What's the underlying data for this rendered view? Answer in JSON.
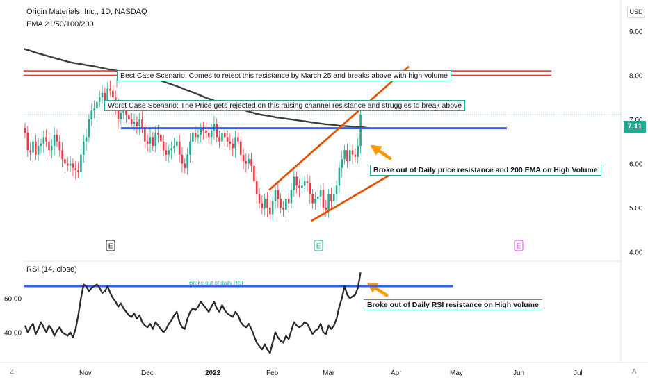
{
  "header": {
    "symbol_line": "Origin Materials, Inc., 1D, NASDAQ",
    "indicator_line": "EMA 21/50/100/200"
  },
  "currency_button": "USD",
  "last_price_tag": "7.11",
  "rsi_label": "RSI (14, close)",
  "corner_left": "Z",
  "corner_right": "A",
  "earnings_marker": "E",
  "annotations": {
    "best_case": "Best Case Scenario: Comes to retest this resistance by March 25 and breaks above with high volume",
    "worst_case": "Worst Case Scenario: The Price gets rejected on this raising channel resistance and struggles to break above",
    "breakout_price": "Broke out of Daily price resistance and 200 EMA on High Volume",
    "breakout_rsi": "Broke out of Daily RSI resistance on High volume",
    "rsi_line_label": "Broke out of daily RSI"
  },
  "colors": {
    "up": "#22ab94",
    "down": "#f23645",
    "ema200": "#3d3d3d",
    "resistance_blue": "#2962ff",
    "channel_orange": "#e65100",
    "horizontal_red": "#e53935",
    "arrow_orange": "#ff9800",
    "rsi_line": "#2b2b2b"
  },
  "chart_data": [
    {
      "type": "candlestick",
      "title": "Origin Materials, Inc., 1D, NASDAQ",
      "y_ticks": [
        "9.00",
        "8.00",
        "7.00",
        "6.00",
        "5.00",
        "4.00"
      ],
      "ylim": [
        3.85,
        9.55
      ],
      "x_ticks": [
        "Nov",
        "Dec",
        "2022",
        "Feb",
        "Mar",
        "Apr",
        "May",
        "Jun",
        "Jul"
      ],
      "last_price": 7.11,
      "closes": [
        6.7,
        6.3,
        6.25,
        6.5,
        6.2,
        6.4,
        6.45,
        6.6,
        6.5,
        6.3,
        6.4,
        6.65,
        6.5,
        6.3,
        6.1,
        6.0,
        5.95,
        6.0,
        5.9,
        5.85,
        5.8,
        6.2,
        6.5,
        6.6,
        7.0,
        7.2,
        7.25,
        7.4,
        7.5,
        7.6,
        7.4,
        7.7,
        7.65,
        7.5,
        7.3,
        7.0,
        7.15,
        7.25,
        7.1,
        7.0,
        6.9,
        6.95,
        6.85,
        7.0,
        6.8,
        6.5,
        6.45,
        6.6,
        6.4,
        6.7,
        6.65,
        6.5,
        6.3,
        6.2,
        6.3,
        6.35,
        6.4,
        6.5,
        6.2,
        6.0,
        5.9,
        6.2,
        6.5,
        6.7,
        6.6,
        6.65,
        6.8,
        6.75,
        6.7,
        6.6,
        6.75,
        6.9,
        6.6,
        6.5,
        6.7,
        6.6,
        6.5,
        6.45,
        6.35,
        6.6,
        6.5,
        6.2,
        6.05,
        6.0,
        6.1,
        5.95,
        5.6,
        5.3,
        5.1,
        5.0,
        5.2,
        5.0,
        4.85,
        5.15,
        5.4,
        5.2,
        5.0,
        4.95,
        5.2,
        5.1,
        5.4,
        5.7,
        5.5,
        5.45,
        5.5,
        5.6,
        5.55,
        5.3,
        5.1,
        5.2,
        5.25,
        5.4,
        5.0,
        4.95,
        5.3,
        5.15,
        5.3,
        5.5,
        5.9,
        6.1,
        6.3,
        6.05,
        6.3,
        6.2,
        6.15,
        6.4,
        7.11
      ],
      "ema200": [
        8.6,
        8.56,
        8.51,
        8.47,
        8.43,
        8.39,
        8.35,
        8.31,
        8.28,
        8.26,
        8.23,
        8.21,
        8.18,
        8.15,
        8.12,
        8.1,
        8.08,
        8.06,
        8.02,
        8.0,
        7.97,
        7.92,
        7.87,
        7.82,
        7.77,
        7.72,
        7.66,
        7.61,
        7.55,
        7.49,
        7.44,
        7.39,
        7.34,
        7.3,
        7.25,
        7.21,
        7.17,
        7.13,
        7.1,
        7.08,
        7.05,
        7.03,
        7.01,
        6.99,
        6.97,
        6.95,
        6.93,
        6.91,
        6.89,
        6.88,
        6.86,
        6.85,
        6.84,
        6.83,
        6.82,
        6.8
      ],
      "lines": {
        "red_1": 8.1,
        "red_2": 8.0,
        "blue_resistance": 6.8,
        "channel_upper": [
          [
            5.4,
            8.2
          ]
        ],
        "channel_lower": [
          [
            4.7,
            5.9
          ]
        ]
      },
      "annotations": [
        "Best Case Scenario: Comes to retest this resistance by March 25 and breaks above with high volume",
        "Worst Case Scenario: The Price gets rejected on this raising channel resistance and struggles to break above",
        "Broke out of Daily price resistance and 200 EMA on High Volume"
      ]
    },
    {
      "type": "line",
      "title": "RSI (14, close)",
      "y_ticks": [
        "60.00",
        "40.00"
      ],
      "ylim": [
        24,
        80
      ],
      "resistance": 67,
      "values": [
        44,
        40,
        43,
        45,
        39,
        42,
        46,
        43,
        40,
        44,
        42,
        38,
        41,
        43,
        40,
        39,
        38,
        40,
        37,
        42,
        50,
        60,
        68,
        67,
        64,
        66,
        67,
        68,
        66,
        63,
        64,
        67,
        63,
        60,
        58,
        55,
        57,
        54,
        52,
        50,
        49,
        51,
        48,
        50,
        46,
        44,
        43,
        45,
        42,
        46,
        44,
        42,
        40,
        42,
        45,
        47,
        50,
        52,
        46,
        43,
        42,
        48,
        52,
        54,
        53,
        55,
        58,
        56,
        54,
        52,
        55,
        58,
        54,
        52,
        56,
        53,
        51,
        50,
        49,
        52,
        50,
        46,
        44,
        43,
        45,
        42,
        38,
        34,
        32,
        30,
        33,
        30,
        28,
        34,
        40,
        37,
        35,
        34,
        38,
        36,
        41,
        46,
        44,
        43,
        44,
        46,
        45,
        42,
        39,
        41,
        42,
        45,
        40,
        39,
        44,
        42,
        44,
        48,
        55,
        60,
        67,
        62,
        60,
        61,
        62,
        66,
        75
      ],
      "annotations": [
        "Broke out of daily RSI",
        "Broke out of Daily RSI resistance on High volume"
      ]
    }
  ]
}
